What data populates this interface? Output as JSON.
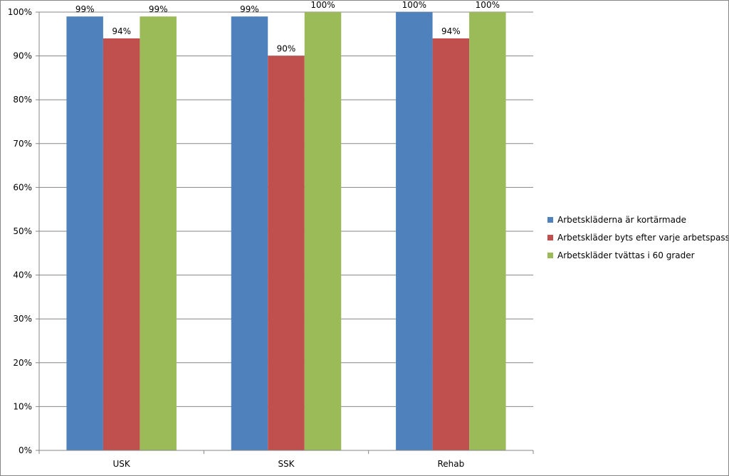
{
  "chart_data": {
    "type": "bar",
    "categories": [
      "USK",
      "SSK",
      "Rehab"
    ],
    "series": [
      {
        "name": "Arbetskläderna är kortärmade",
        "values": [
          99,
          99,
          100
        ],
        "labels": [
          "99%",
          "99%",
          "100%"
        ],
        "color": "#4F81BD"
      },
      {
        "name": "Arbetskläder byts efter varje arbetspass",
        "values": [
          94,
          90,
          94
        ],
        "labels": [
          "94%",
          "90%",
          "94%"
        ],
        "color": "#C0504D"
      },
      {
        "name": "Arbetskläder tvättas i 60 grader",
        "values": [
          99,
          100,
          100
        ],
        "labels": [
          "99%",
          "100%",
          "100%"
        ],
        "color": "#9BBB59"
      }
    ],
    "ylim": [
      0,
      100
    ],
    "yticks": [
      0,
      10,
      20,
      30,
      40,
      50,
      60,
      70,
      80,
      90,
      100
    ],
    "ytick_labels": [
      "0%",
      "10%",
      "20%",
      "30%",
      "40%",
      "50%",
      "60%",
      "70%",
      "80%",
      "90%",
      "100%"
    ],
    "grid": true,
    "legend": "right",
    "title": "",
    "xlabel": "",
    "ylabel": ""
  }
}
